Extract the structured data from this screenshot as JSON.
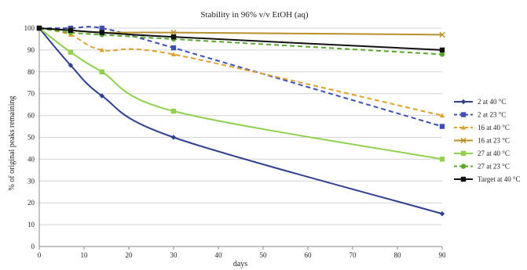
{
  "chart_data": {
    "type": "line",
    "title": "Stability in 96% v/v EtOH (aq)",
    "xlabel": "days",
    "ylabel": "% of original peaks remaining",
    "xlim": [
      0,
      90
    ],
    "ylim": [
      0,
      100
    ],
    "xticks": [
      0,
      10,
      20,
      30,
      40,
      50,
      60,
      70,
      80,
      90
    ],
    "yticks": [
      0,
      10,
      20,
      30,
      40,
      50,
      60,
      70,
      80,
      90,
      100
    ],
    "grid": "horizontal",
    "legend_position": "right",
    "series": [
      {
        "name": "2 at 40 °C",
        "color": "#2e3f8f",
        "dash": "solid",
        "marker": "diamond",
        "x": [
          0,
          7,
          14,
          30,
          90
        ],
        "y": [
          100,
          83,
          69,
          50,
          15
        ]
      },
      {
        "name": "2 at 23 °C",
        "color": "#3d4fb0",
        "dash": "dashed",
        "marker": "square",
        "x": [
          0,
          7,
          14,
          30,
          90
        ],
        "y": [
          100,
          100,
          100,
          91,
          55
        ]
      },
      {
        "name": "16 at 40 °C",
        "color": "#e0a030",
        "dash": "dashed",
        "marker": "triangle",
        "x": [
          0,
          7,
          14,
          30,
          90
        ],
        "y": [
          100,
          97,
          90,
          88,
          60
        ]
      },
      {
        "name": "16 at 23 °C",
        "color": "#b8902a",
        "dash": "solid",
        "marker": "x",
        "x": [
          0,
          7,
          14,
          30,
          90
        ],
        "y": [
          100,
          99,
          98,
          98,
          97
        ]
      },
      {
        "name": "27 at 40 °C",
        "color": "#8fd14f",
        "dash": "solid",
        "marker": "square",
        "x": [
          0,
          7,
          14,
          30,
          90
        ],
        "y": [
          100,
          89,
          80,
          62,
          40
        ]
      },
      {
        "name": "27 at 23 °C",
        "color": "#5aa832",
        "dash": "dashed",
        "marker": "circle",
        "x": [
          0,
          7,
          14,
          30,
          90
        ],
        "y": [
          100,
          98,
          97,
          95,
          88
        ]
      },
      {
        "name": "Target at 40 °C",
        "color": "#111111",
        "dash": "solid",
        "marker": "square",
        "x": [
          0,
          7,
          14,
          30,
          90
        ],
        "y": [
          100,
          99,
          98,
          96,
          90
        ]
      }
    ]
  }
}
